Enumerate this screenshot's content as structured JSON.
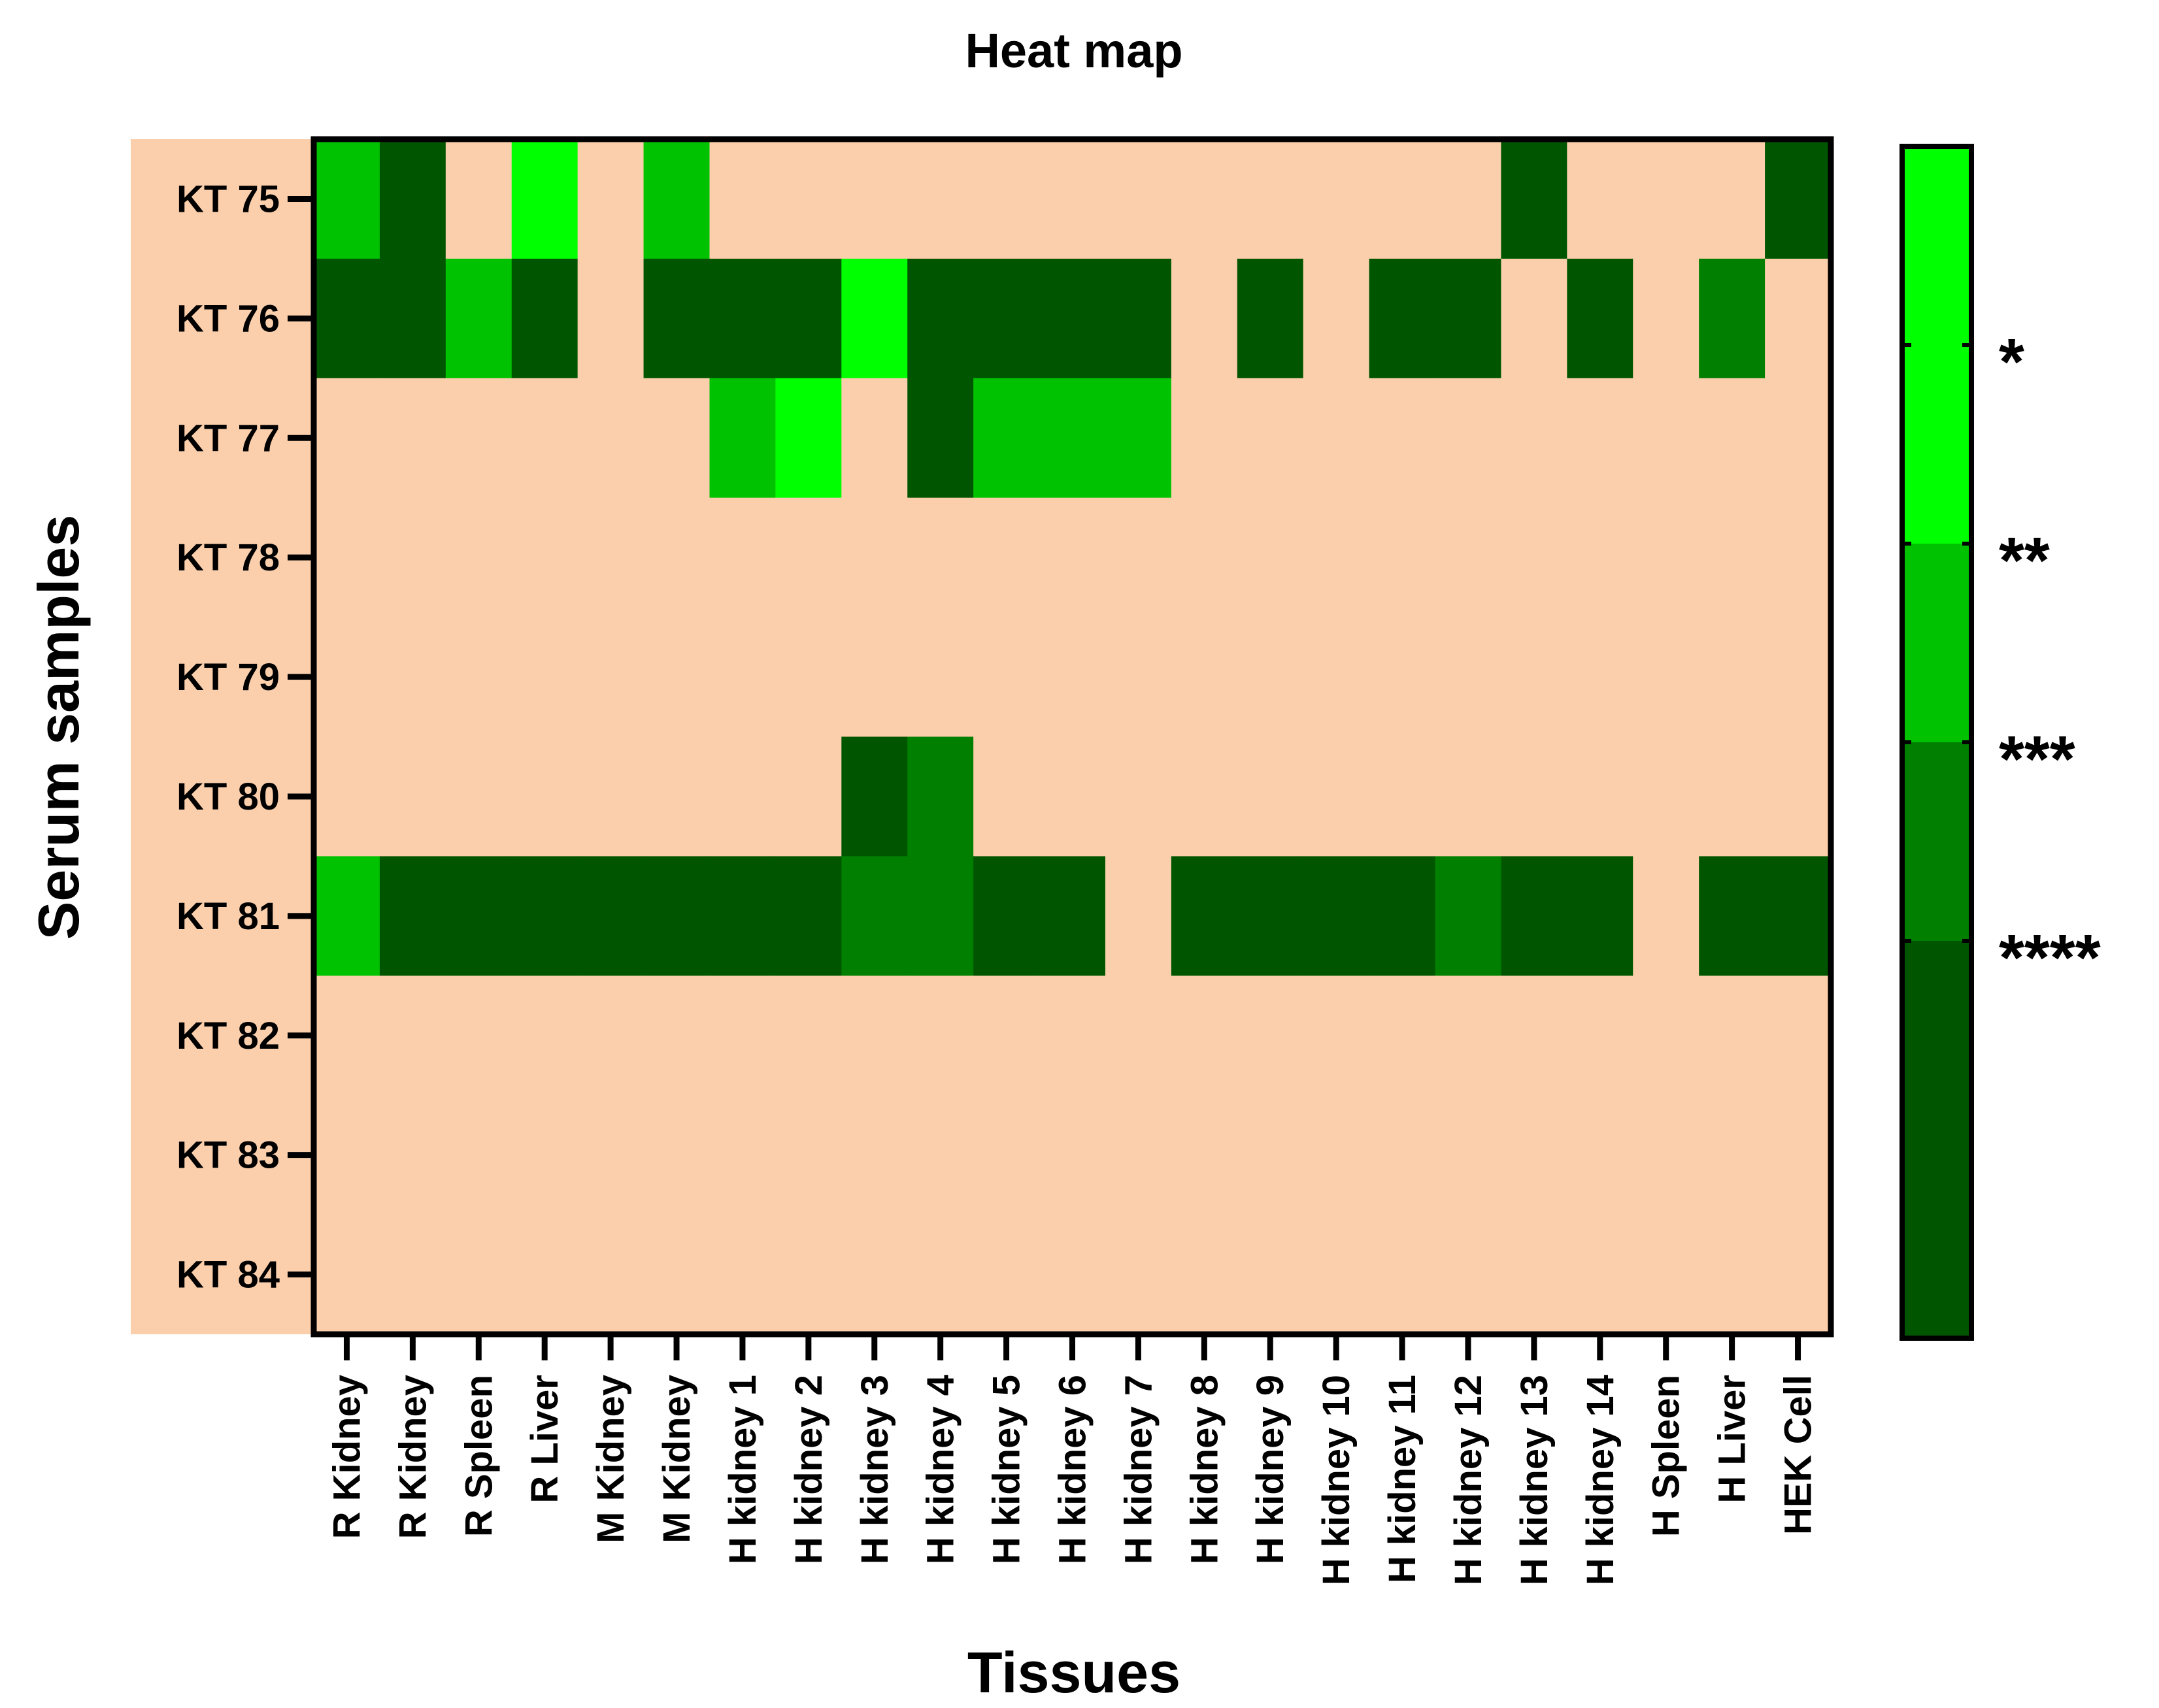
{
  "chart_data": {
    "type": "heatmap",
    "title": "Heat map",
    "xlabel": "Tissues",
    "ylabel": "Serum samples",
    "x_categories": [
      "R Kidney",
      "R Kidney",
      "R Spleen",
      "R Liver",
      "M Kidney",
      "M Kidney",
      "H kidney 1",
      "H kidney 2",
      "H kidney 3",
      "H kidney 4",
      "H kidney 5",
      "H kidney 6",
      "H kidney 7",
      "H kidney 8",
      "H kidney 9",
      "H kidney 10",
      "H kidney 11",
      "H kidney 12",
      "H kidney 13",
      "H kidney 14",
      "H Spleen",
      "H Liver",
      "HEK Cell"
    ],
    "y_categories": [
      "KT 75",
      "KT 76",
      "KT 77",
      "KT 78",
      "KT 79",
      "KT 80",
      "KT 81",
      "KT 82",
      "KT 83",
      "KT 84"
    ],
    "values": [
      [
        2,
        4,
        0,
        1,
        0,
        2,
        0,
        0,
        0,
        0,
        0,
        0,
        0,
        0,
        0,
        0,
        0,
        0,
        4,
        0,
        0,
        0,
        4
      ],
      [
        4,
        4,
        2,
        4,
        0,
        4,
        4,
        4,
        1,
        4,
        4,
        4,
        4,
        0,
        4,
        0,
        4,
        4,
        0,
        4,
        0,
        3,
        0
      ],
      [
        0,
        0,
        0,
        0,
        0,
        0,
        2,
        1,
        0,
        4,
        2,
        2,
        2,
        0,
        0,
        0,
        0,
        0,
        0,
        0,
        0,
        0,
        0
      ],
      [
        0,
        0,
        0,
        0,
        0,
        0,
        0,
        0,
        0,
        0,
        0,
        0,
        0,
        0,
        0,
        0,
        0,
        0,
        0,
        0,
        0,
        0,
        0
      ],
      [
        0,
        0,
        0,
        0,
        0,
        0,
        0,
        0,
        0,
        0,
        0,
        0,
        0,
        0,
        0,
        0,
        0,
        0,
        0,
        0,
        0,
        0,
        0
      ],
      [
        0,
        0,
        0,
        0,
        0,
        0,
        0,
        0,
        4,
        3,
        0,
        0,
        0,
        0,
        0,
        0,
        0,
        0,
        0,
        0,
        0,
        0,
        0
      ],
      [
        2,
        4,
        4,
        4,
        4,
        4,
        4,
        4,
        3,
        3,
        4,
        4,
        0,
        4,
        4,
        4,
        4,
        3,
        4,
        4,
        0,
        4,
        4
      ],
      [
        0,
        0,
        0,
        0,
        0,
        0,
        0,
        0,
        0,
        0,
        0,
        0,
        0,
        0,
        0,
        0,
        0,
        0,
        0,
        0,
        0,
        0,
        0
      ],
      [
        0,
        0,
        0,
        0,
        0,
        0,
        0,
        0,
        0,
        0,
        0,
        0,
        0,
        0,
        0,
        0,
        0,
        0,
        0,
        0,
        0,
        0,
        0
      ],
      [
        0,
        0,
        0,
        0,
        0,
        0,
        0,
        0,
        0,
        0,
        0,
        0,
        0,
        0,
        0,
        0,
        0,
        0,
        0,
        0,
        0,
        0,
        0
      ]
    ],
    "levels": [
      {
        "value": 0,
        "label": "",
        "color": "#FBCFAC"
      },
      {
        "value": 1,
        "label": "*",
        "color": "#00FF00"
      },
      {
        "value": 2,
        "label": "**",
        "color": "#00C200"
      },
      {
        "value": 3,
        "label": "***",
        "color": "#007F00"
      },
      {
        "value": 4,
        "label": "****",
        "color": "#005600"
      }
    ],
    "legend": {
      "position": "right",
      "colors": [
        "#00FF00",
        "#00FF00",
        "#00C200",
        "#007F00",
        "#005600",
        "#005600"
      ],
      "labels": [
        "*",
        "**",
        "***",
        "****"
      ]
    },
    "grid": false
  }
}
